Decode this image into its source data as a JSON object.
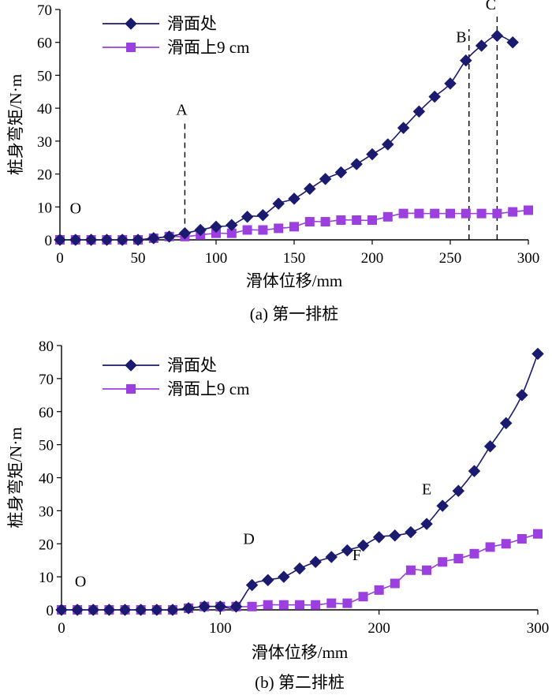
{
  "chart_data": [
    {
      "type": "line",
      "caption": "(a) 第一排桩",
      "xlabel": "滑体位移/mm",
      "ylabel": "桩身弯矩/N·m",
      "xlim": [
        0,
        300
      ],
      "ylim": [
        0,
        70
      ],
      "xticks": [
        0,
        50,
        100,
        150,
        200,
        250,
        300
      ],
      "yticks": [
        0,
        10,
        20,
        30,
        40,
        50,
        60,
        70
      ],
      "grid": false,
      "legend_position": "top-left",
      "series": [
        {
          "name": "滑面处",
          "color": "#1a1a6e",
          "marker": "diamond",
          "x": [
            0,
            10,
            20,
            30,
            40,
            50,
            60,
            70,
            80,
            90,
            100,
            110,
            120,
            130,
            140,
            150,
            160,
            170,
            180,
            190,
            200,
            210,
            220,
            230,
            240,
            250,
            260,
            270,
            280,
            290
          ],
          "y": [
            0,
            0,
            0,
            0,
            0,
            0,
            0.5,
            1,
            2,
            3,
            4,
            4.5,
            7,
            7.5,
            11,
            12.5,
            15.5,
            18.5,
            20.5,
            23,
            26,
            29,
            34,
            39,
            43.5,
            47.5,
            54.5,
            59,
            62,
            60
          ]
        },
        {
          "name": "滑面上9 cm",
          "color": "#9b3fdf",
          "marker": "square",
          "x": [
            0,
            10,
            20,
            30,
            40,
            50,
            60,
            70,
            80,
            90,
            100,
            110,
            120,
            130,
            140,
            150,
            160,
            170,
            180,
            190,
            200,
            210,
            220,
            230,
            240,
            250,
            260,
            270,
            280,
            290,
            300
          ],
          "y": [
            0,
            0,
            0,
            0,
            0,
            0,
            0.5,
            1,
            1,
            1.5,
            2,
            2,
            3,
            3,
            3.5,
            4,
            5.5,
            5.5,
            6,
            6,
            6,
            7,
            8,
            8,
            8,
            8,
            8,
            8,
            8,
            8.5,
            9
          ]
        }
      ],
      "annotations": [
        {
          "text": "O",
          "x": 10,
          "y": 8
        },
        {
          "text": "A",
          "x": 78,
          "y": 38,
          "line_x": 80,
          "line_from_y": 2,
          "line_to_y": 36
        },
        {
          "text": "B",
          "x": 257,
          "y": 60,
          "line_x": 262,
          "line_from_y": 0,
          "line_to_y": 64
        },
        {
          "text": "C",
          "x": 276,
          "y": 70,
          "line_x": 280,
          "line_from_y": 0,
          "line_to_y": 69
        }
      ]
    },
    {
      "type": "line",
      "caption": "(b) 第二排桩",
      "xlabel": "滑体位移/mm",
      "ylabel": "桩身弯矩/N·m",
      "xlim": [
        0,
        300
      ],
      "ylim": [
        0,
        80
      ],
      "xticks": [
        0,
        100,
        200,
        300
      ],
      "yticks": [
        0,
        10,
        20,
        30,
        40,
        50,
        60,
        70,
        80
      ],
      "grid": false,
      "legend_position": "top-left",
      "series": [
        {
          "name": "滑面处",
          "color": "#1a1a6e",
          "marker": "diamond",
          "x": [
            0,
            10,
            20,
            30,
            40,
            50,
            60,
            70,
            80,
            90,
            100,
            110,
            120,
            130,
            140,
            150,
            160,
            170,
            180,
            190,
            200,
            210,
            220,
            230,
            240,
            250,
            260,
            270,
            280,
            290,
            300
          ],
          "y": [
            0,
            0,
            0,
            0,
            0,
            0,
            0,
            0,
            0.5,
            1,
            1,
            1,
            7.5,
            9,
            10,
            12.5,
            14.5,
            16,
            18,
            19.5,
            22,
            22.5,
            23.5,
            26,
            31.5,
            36,
            42,
            49.5,
            56.5,
            65,
            77.5
          ]
        },
        {
          "name": "滑面上9 cm",
          "color": "#9b3fdf",
          "marker": "square",
          "x": [
            0,
            10,
            20,
            30,
            40,
            50,
            60,
            70,
            80,
            90,
            100,
            110,
            120,
            130,
            140,
            150,
            160,
            170,
            180,
            190,
            200,
            210,
            220,
            230,
            240,
            250,
            260,
            270,
            280,
            290,
            300
          ],
          "y": [
            0,
            0,
            0,
            0,
            0,
            0,
            0,
            0,
            0.5,
            1,
            1,
            1,
            1,
            1.5,
            1.5,
            1.5,
            1.5,
            2,
            2,
            4,
            6,
            8,
            12,
            12,
            14.5,
            15.5,
            17,
            19,
            20,
            21.5,
            23
          ]
        }
      ],
      "annotations": [
        {
          "text": "O",
          "x": 12,
          "y": 7
        },
        {
          "text": "D",
          "x": 118,
          "y": 20
        },
        {
          "text": "E",
          "x": 230,
          "y": 35
        },
        {
          "text": "F",
          "x": 186,
          "y": 15
        }
      ]
    }
  ]
}
